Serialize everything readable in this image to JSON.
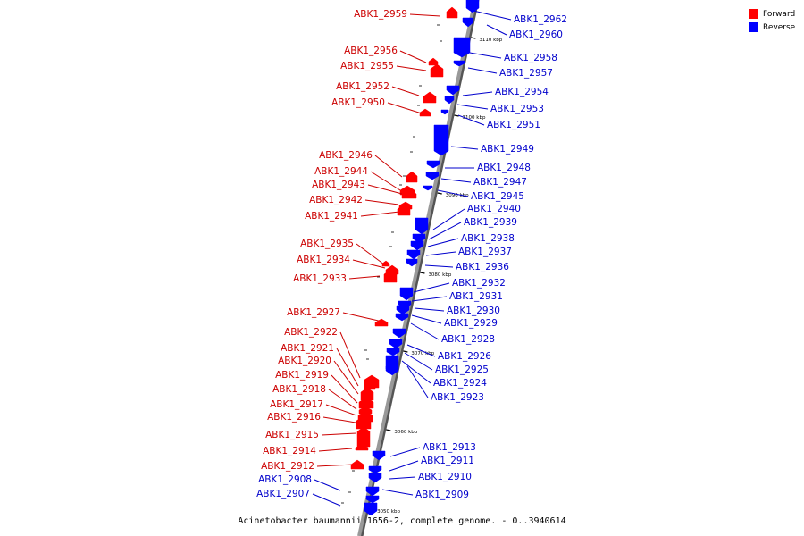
{
  "caption": "Acinetobacter baumannii 1656-2, complete genome. - 0..3940614",
  "colors": {
    "forward": "#ff0000",
    "reverse": "#0000ff",
    "backbone": "#999999",
    "label_forward": "#cc0000",
    "label_reverse": "#0000cc"
  },
  "legend": [
    {
      "label": "Forward",
      "color": "#ff0000"
    },
    {
      "label": "Reverse",
      "color": "#0000ff"
    }
  ],
  "scale_ticks": [
    "3110 kbp",
    "3100 kbp",
    "3090 kbp",
    "3080 kbp",
    "3070 kbp",
    "3060 kbp",
    "3050 kbp"
  ],
  "forward_genes": [
    "ABK1_2959",
    "ABK1_2956",
    "ABK1_2955",
    "ABK1_2952",
    "ABK1_2950",
    "ABK1_2946",
    "ABK1_2944",
    "ABK1_2943",
    "ABK1_2942",
    "ABK1_2941",
    "ABK1_2935",
    "ABK1_2934",
    "ABK1_2933",
    "ABK1_2927",
    "ABK1_2922",
    "ABK1_2921",
    "ABK1_2920",
    "ABK1_2919",
    "ABK1_2918",
    "ABK1_2917",
    "ABK1_2916",
    "ABK1_2915",
    "ABK1_2914",
    "ABK1_2912"
  ],
  "reverse_genes": [
    "ABK1_2962",
    "ABK1_2960",
    "ABK1_2958",
    "ABK1_2957",
    "ABK1_2954",
    "ABK1_2953",
    "ABK1_2951",
    "ABK1_2949",
    "ABK1_2948",
    "ABK1_2947",
    "ABK1_2945",
    "ABK1_2940",
    "ABK1_2939",
    "ABK1_2938",
    "ABK1_2937",
    "ABK1_2936",
    "ABK1_2932",
    "ABK1_2931",
    "ABK1_2930",
    "ABK1_2929",
    "ABK1_2928",
    "ABK1_2926",
    "ABK1_2925",
    "ABK1_2924",
    "ABK1_2923",
    "ABK1_2913",
    "ABK1_2911",
    "ABK1_2910",
    "ABK1_2909",
    "ABK1_2908",
    "ABK1_2907"
  ]
}
